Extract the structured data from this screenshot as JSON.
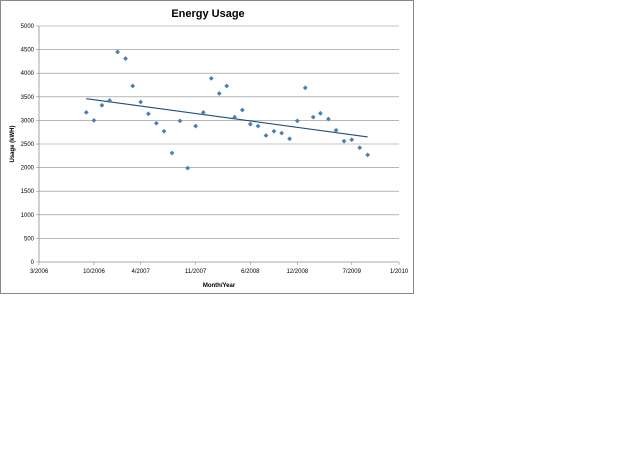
{
  "chart_data": {
    "type": "scatter",
    "title": "Energy Usage",
    "xlabel": "Month/Year",
    "ylabel": "Usage (kWH)",
    "x_tick_labels": [
      "3/2006",
      "10/2006",
      "4/2007",
      "11/2007",
      "6/2008",
      "12/2008",
      "7/2009",
      "1/2010"
    ],
    "x_tick_dates": [
      "2006-03-01",
      "2006-10-01",
      "2007-04-01",
      "2007-11-01",
      "2008-06-01",
      "2008-12-01",
      "2009-07-01",
      "2010-01-01"
    ],
    "xlim": [
      "2006-03-01",
      "2010-01-01"
    ],
    "y_ticks": [
      0,
      500,
      1000,
      1500,
      2000,
      2500,
      3000,
      3500,
      4000,
      4500,
      5000
    ],
    "ylim": [
      0,
      5000
    ],
    "grid": "horizontal",
    "legend": "none",
    "marker": "diamond",
    "series": [
      {
        "color": "#4a7fb5",
        "points": [
          {
            "x": "2006-09-01",
            "y": 3170
          },
          {
            "x": "2006-10-01",
            "y": 3000
          },
          {
            "x": "2006-11-01",
            "y": 3320
          },
          {
            "x": "2006-12-01",
            "y": 3420
          },
          {
            "x": "2007-01-01",
            "y": 4450
          },
          {
            "x": "2007-02-01",
            "y": 4310
          },
          {
            "x": "2007-03-01",
            "y": 3730
          },
          {
            "x": "2007-04-01",
            "y": 3390
          },
          {
            "x": "2007-05-01",
            "y": 3140
          },
          {
            "x": "2007-06-01",
            "y": 2940
          },
          {
            "x": "2007-07-01",
            "y": 2770
          },
          {
            "x": "2007-08-01",
            "y": 2310
          },
          {
            "x": "2007-09-01",
            "y": 2990
          },
          {
            "x": "2007-10-01",
            "y": 1990
          },
          {
            "x": "2007-11-01",
            "y": 2880
          },
          {
            "x": "2007-12-01",
            "y": 3170
          },
          {
            "x": "2008-01-01",
            "y": 3890
          },
          {
            "x": "2008-02-01",
            "y": 3570
          },
          {
            "x": "2008-03-01",
            "y": 3730
          },
          {
            "x": "2008-04-01",
            "y": 3070
          },
          {
            "x": "2008-05-01",
            "y": 3220
          },
          {
            "x": "2008-06-01",
            "y": 2920
          },
          {
            "x": "2008-07-01",
            "y": 2880
          },
          {
            "x": "2008-08-01",
            "y": 2680
          },
          {
            "x": "2008-09-01",
            "y": 2770
          },
          {
            "x": "2008-10-01",
            "y": 2730
          },
          {
            "x": "2008-11-01",
            "y": 2610
          },
          {
            "x": "2008-12-01",
            "y": 2990
          },
          {
            "x": "2009-01-01",
            "y": 3690
          },
          {
            "x": "2009-02-01",
            "y": 3070
          },
          {
            "x": "2009-03-01",
            "y": 3150
          },
          {
            "x": "2009-04-01",
            "y": 3030
          },
          {
            "x": "2009-05-01",
            "y": 2790
          },
          {
            "x": "2009-06-01",
            "y": 2560
          },
          {
            "x": "2009-07-01",
            "y": 2590
          },
          {
            "x": "2009-08-01",
            "y": 2420
          },
          {
            "x": "2009-09-01",
            "y": 2270
          }
        ],
        "trendline": {
          "type": "linear",
          "color": "#1f4e79",
          "start": {
            "x": "2006-09-01",
            "y": 3460
          },
          "end": {
            "x": "2009-09-01",
            "y": 2650
          }
        }
      }
    ]
  }
}
